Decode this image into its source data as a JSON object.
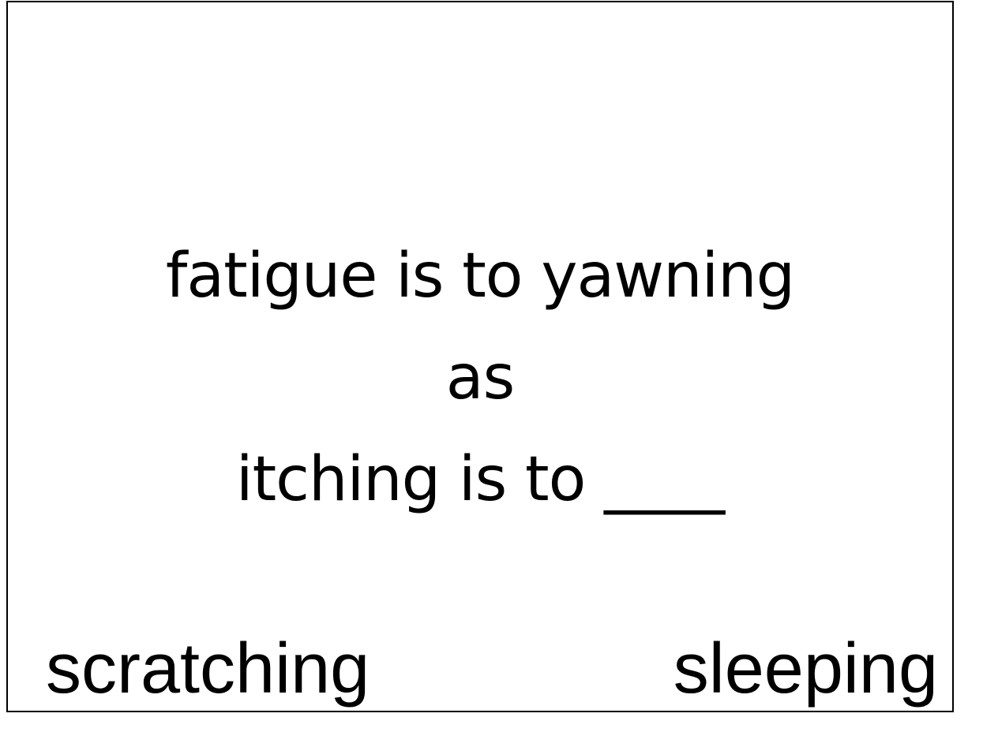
{
  "prompt": {
    "line1": "fatigue is to yawning",
    "line2": "as",
    "line3": "itching is to ____"
  },
  "options": {
    "left": "scratching",
    "right": "sleeping"
  },
  "colors": {
    "background": "#ffffff",
    "text": "#000000",
    "border": "#000000"
  }
}
